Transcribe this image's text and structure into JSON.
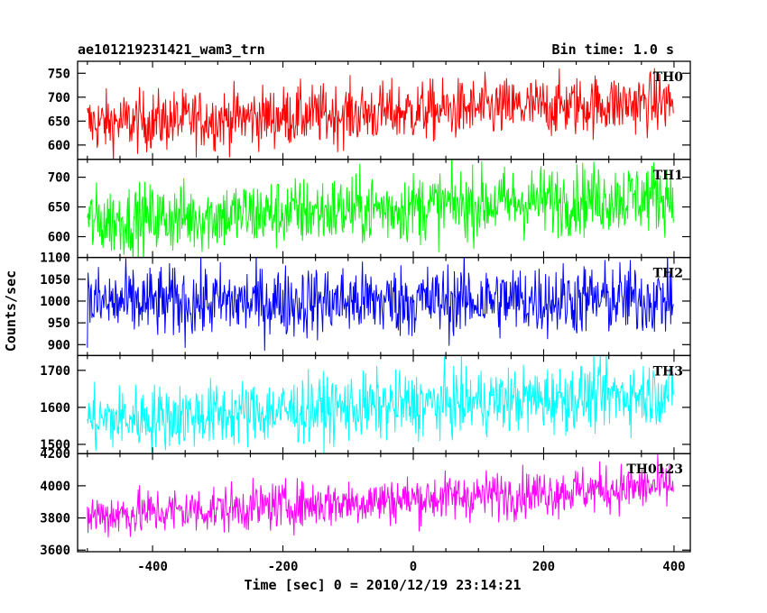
{
  "chart_data": {
    "type": "line",
    "title_left": "ae101219231421_wam3_trn",
    "title_right": "Bin time: 1.0 s",
    "xlabel": "Time [sec] 0 = 2010/12/19 23:14:21",
    "ylabel": "Counts/sec",
    "xlim": [
      -515,
      425
    ],
    "x_ticks": [
      -400,
      -200,
      0,
      200,
      400
    ],
    "x_range": [
      -500,
      399
    ],
    "bin_time": 1.0,
    "grid": false,
    "panels": [
      {
        "name": "TH0",
        "color": "#ff0000",
        "ylim": [
          570,
          775
        ],
        "yticks": [
          600,
          650,
          700,
          750
        ],
        "start": 645,
        "end": 690,
        "noise": 32
      },
      {
        "name": "TH1",
        "color": "#00ff00",
        "ylim": [
          565,
          730
        ],
        "yticks": [
          600,
          650,
          700
        ],
        "start": 625,
        "end": 670,
        "noise": 30
      },
      {
        "name": "TH2",
        "color": "#0000ff",
        "ylim": [
          875,
          1100
        ],
        "yticks": [
          900,
          950,
          1000,
          1050,
          1100
        ],
        "start": 995,
        "end": 1005,
        "noise": 42
      },
      {
        "name": "TH3",
        "color": "#00ffff",
        "ylim": [
          1475,
          1740
        ],
        "yticks": [
          1500,
          1600,
          1700
        ],
        "start": 1565,
        "end": 1640,
        "noise": 45
      },
      {
        "name": "TH0123",
        "color": "#ff00ff",
        "ylim": [
          3590,
          4200
        ],
        "yticks": [
          3600,
          3800,
          4000,
          4200
        ],
        "start": 3815,
        "end": 4000,
        "noise": 75
      }
    ]
  }
}
